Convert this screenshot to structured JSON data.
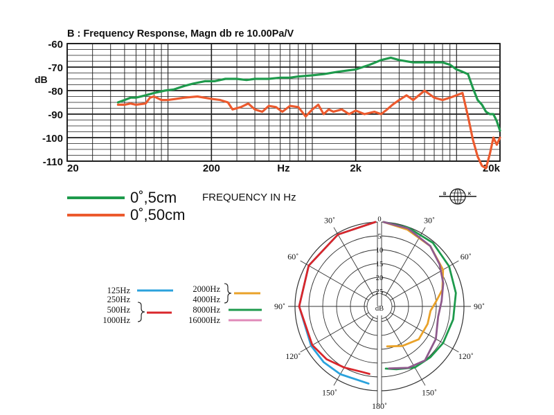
{
  "colors": {
    "green": "#1e9a4c",
    "red": "#ec5a2e",
    "blue": "#2aa2dc",
    "darkred": "#d9262b",
    "orange": "#e9a229",
    "pink": "#e08ab8",
    "purple": "#8e5a8c",
    "grid": "#1a1a1a"
  },
  "chart_data": [
    {
      "type": "line",
      "title": "B : Frequency Response, Magn db re 10.00Pa/V",
      "ylabel": "dB",
      "xlabel": "FREQUENCY IN Hz",
      "xscale": "log",
      "xlim": [
        20,
        20000
      ],
      "ylim": [
        -110,
        -60
      ],
      "xticks": [
        {
          "value": 20,
          "label": "20"
        },
        {
          "value": 200,
          "label": "200"
        },
        {
          "value": 632,
          "label": "Hz"
        },
        {
          "value": 2000,
          "label": "2k"
        },
        {
          "value": 20000,
          "label": "20k"
        }
      ],
      "yticks": [
        {
          "value": -60,
          "label": "-60"
        },
        {
          "value": -70,
          "label": "-70"
        },
        {
          "value": -80,
          "label": "-80"
        },
        {
          "value": -90,
          "label": "-90"
        },
        {
          "value": -100,
          "label": "-100"
        },
        {
          "value": -110,
          "label": "-110"
        }
      ],
      "grid": true,
      "legend_position": "bottom-left",
      "series": [
        {
          "name": "0˚,5cm",
          "color": "#1e9a4c",
          "points": [
            [
              45,
              -85
            ],
            [
              50,
              -84
            ],
            [
              55,
              -83
            ],
            [
              60,
              -83
            ],
            [
              70,
              -82
            ],
            [
              80,
              -81
            ],
            [
              95,
              -80
            ],
            [
              110,
              -79.5
            ],
            [
              130,
              -78
            ],
            [
              150,
              -77
            ],
            [
              180,
              -76
            ],
            [
              210,
              -76
            ],
            [
              250,
              -75
            ],
            [
              300,
              -75
            ],
            [
              350,
              -75.5
            ],
            [
              400,
              -75
            ],
            [
              500,
              -75
            ],
            [
              600,
              -74.5
            ],
            [
              700,
              -74.5
            ],
            [
              800,
              -74
            ],
            [
              1000,
              -73.5
            ],
            [
              1200,
              -73
            ],
            [
              1500,
              -72
            ],
            [
              2000,
              -71
            ],
            [
              2500,
              -69
            ],
            [
              3000,
              -67
            ],
            [
              3500,
              -66
            ],
            [
              4000,
              -67
            ],
            [
              5000,
              -68
            ],
            [
              6000,
              -68
            ],
            [
              7000,
              -68
            ],
            [
              8000,
              -68
            ],
            [
              9000,
              -69
            ],
            [
              10000,
              -71
            ],
            [
              11000,
              -72
            ],
            [
              12000,
              -73
            ],
            [
              13000,
              -79
            ],
            [
              14000,
              -84
            ],
            [
              15000,
              -86
            ],
            [
              16000,
              -89
            ],
            [
              17000,
              -90
            ],
            [
              18000,
              -90
            ],
            [
              19000,
              -93
            ],
            [
              20000,
              -97
            ]
          ]
        },
        {
          "name": "0˚,50cm",
          "color": "#ec5a2e",
          "points": [
            [
              45,
              -86
            ],
            [
              50,
              -86
            ],
            [
              55,
              -85.5
            ],
            [
              60,
              -86
            ],
            [
              70,
              -85.5
            ],
            [
              75,
              -83
            ],
            [
              80,
              -82.5
            ],
            [
              90,
              -84
            ],
            [
              100,
              -84
            ],
            [
              130,
              -83
            ],
            [
              160,
              -82.5
            ],
            [
              200,
              -83.5
            ],
            [
              230,
              -84
            ],
            [
              260,
              -85
            ],
            [
              280,
              -88
            ],
            [
              320,
              -87
            ],
            [
              360,
              -85.5
            ],
            [
              400,
              -88
            ],
            [
              450,
              -89
            ],
            [
              500,
              -86.5
            ],
            [
              560,
              -87
            ],
            [
              620,
              -89
            ],
            [
              700,
              -86.5
            ],
            [
              800,
              -87
            ],
            [
              900,
              -91
            ],
            [
              1000,
              -88
            ],
            [
              1100,
              -86
            ],
            [
              1200,
              -90
            ],
            [
              1300,
              -88
            ],
            [
              1400,
              -89
            ],
            [
              1600,
              -88
            ],
            [
              1800,
              -90
            ],
            [
              2000,
              -88.5
            ],
            [
              2300,
              -90
            ],
            [
              2700,
              -89
            ],
            [
              3000,
              -90
            ],
            [
              3300,
              -88
            ],
            [
              3600,
              -86
            ],
            [
              4000,
              -84
            ],
            [
              4500,
              -82
            ],
            [
              5000,
              -84
            ],
            [
              6000,
              -80
            ],
            [
              7000,
              -83
            ],
            [
              8000,
              -84
            ],
            [
              9000,
              -83
            ],
            [
              10000,
              -82
            ],
            [
              11000,
              -81
            ],
            [
              12000,
              -91
            ],
            [
              13000,
              -101
            ],
            [
              14000,
              -108
            ],
            [
              15000,
              -112
            ],
            [
              16000,
              -113
            ],
            [
              17000,
              -107
            ],
            [
              18000,
              -100
            ],
            [
              19000,
              -103
            ],
            [
              20000,
              -100
            ]
          ]
        }
      ]
    },
    {
      "type": "polar",
      "unit_label": "dB",
      "rings": [
        0,
        5,
        10,
        15,
        20,
        25
      ],
      "angle_labels": [
        {
          "deg": 0,
          "label": "0"
        },
        {
          "deg": 30,
          "label": "30˚"
        },
        {
          "deg": -30,
          "label": "30˚"
        },
        {
          "deg": 60,
          "label": "60˚"
        },
        {
          "deg": -60,
          "label": "60˚"
        },
        {
          "deg": 90,
          "label": "90˚"
        },
        {
          "deg": -90,
          "label": "90˚"
        },
        {
          "deg": 120,
          "label": "120˚"
        },
        {
          "deg": -120,
          "label": "120˚"
        },
        {
          "deg": 150,
          "label": "150˚"
        },
        {
          "deg": -150,
          "label": "150˚"
        },
        {
          "deg": 180,
          "label": "180˚"
        }
      ],
      "legend": [
        {
          "labels": [
            "125Hz"
          ],
          "color": "#2aa2dc"
        },
        {
          "labels": [
            "250Hz",
            "500Hz",
            "1000Hz"
          ],
          "color": "#d9262b"
        },
        {
          "labels": [
            "2000Hz",
            "4000Hz"
          ],
          "color": "#e9a229"
        },
        {
          "labels": [
            "8000Hz"
          ],
          "color": "#1e9a4c"
        },
        {
          "labels": [
            "16000Hz"
          ],
          "color": "#e08ab8"
        }
      ],
      "series": [
        {
          "name": "125Hz",
          "side": "left",
          "color": "#2aa2dc",
          "points": [
            [
              0,
              0
            ],
            [
              30,
              0.5
            ],
            [
              60,
              1
            ],
            [
              90,
              1.5
            ],
            [
              120,
              2
            ],
            [
              135,
              2
            ],
            [
              150,
              2.2
            ],
            [
              175,
              2.5
            ]
          ]
        },
        {
          "name": "250Hz-1000Hz",
          "side": "left",
          "color": "#d9262b",
          "points": [
            [
              0,
              0
            ],
            [
              30,
              0.5
            ],
            [
              60,
              1
            ],
            [
              90,
              1.5
            ],
            [
              120,
              2.5
            ],
            [
              135,
              3.5
            ],
            [
              150,
              5
            ],
            [
              165,
              6
            ],
            [
              175,
              6
            ]
          ]
        },
        {
          "name": "2000Hz-4000Hz",
          "side": "right",
          "color": "#e9a229",
          "points": [
            [
              0,
              0
            ],
            [
              20,
              1
            ],
            [
              40,
              2
            ],
            [
              60,
              4
            ],
            [
              75,
              7
            ],
            [
              85,
              10
            ],
            [
              95,
              12
            ],
            [
              110,
              12
            ],
            [
              130,
              12
            ],
            [
              150,
              14
            ],
            [
              175,
              16
            ]
          ]
        },
        {
          "name": "8000Hz",
          "side": "right",
          "color": "#1e9a4c",
          "points": [
            [
              0,
              0
            ],
            [
              20,
              0.2
            ],
            [
              40,
              0.5
            ],
            [
              60,
              1.5
            ],
            [
              80,
              2.5
            ],
            [
              100,
              3.5
            ],
            [
              120,
              4
            ],
            [
              135,
              4.5
            ],
            [
              150,
              5
            ],
            [
              165,
              7
            ],
            [
              178,
              8
            ]
          ]
        },
        {
          "name": "16000Hz",
          "side": "right",
          "color": "#8e5a8c",
          "points": [
            [
              0,
              0
            ],
            [
              20,
              0.5
            ],
            [
              40,
              2
            ],
            [
              55,
              4
            ],
            [
              70,
              6
            ],
            [
              85,
              8
            ],
            [
              100,
              9
            ],
            [
              120,
              7
            ],
            [
              140,
              5
            ],
            [
              155,
              6
            ],
            [
              175,
              8
            ]
          ]
        }
      ]
    }
  ],
  "brand": {
    "left_letter": "B",
    "right_letter": "K"
  }
}
